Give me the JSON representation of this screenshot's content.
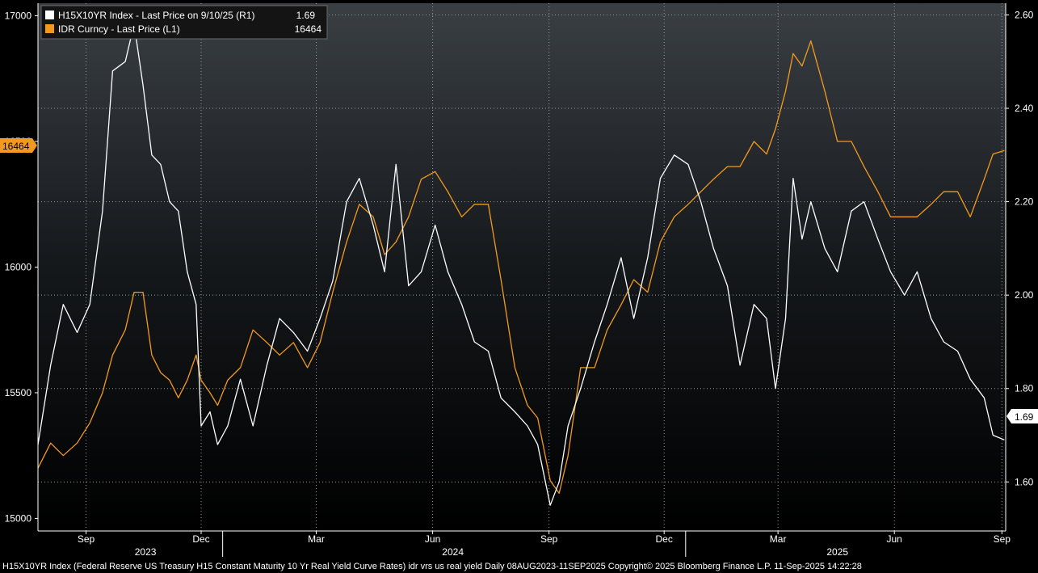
{
  "chart_data": {
    "type": "line",
    "title": "",
    "xlabel": "",
    "ylabel_left": "",
    "ylabel_right": "",
    "left_axis": {
      "ylim": [
        14950,
        17050
      ],
      "ticks": [
        "15000",
        "15500",
        "16000",
        "16500",
        "17000"
      ]
    },
    "right_axis": {
      "ylim": [
        1.495,
        2.625
      ],
      "ticks": [
        "1.60",
        "1.80",
        "2.00",
        "2.20",
        "2.40",
        "2.60"
      ]
    },
    "x_range": [
      "2023-08-08",
      "2025-09-11"
    ],
    "month_ticks": [
      {
        "date": "2023-09-15",
        "label": "Sep"
      },
      {
        "date": "2023-12-15",
        "label": "Dec"
      },
      {
        "date": "2024-03-15",
        "label": "Mar"
      },
      {
        "date": "2024-06-15",
        "label": "Jun"
      },
      {
        "date": "2024-09-15",
        "label": "Sep"
      },
      {
        "date": "2024-12-15",
        "label": "Dec"
      },
      {
        "date": "2025-03-15",
        "label": "Mar"
      },
      {
        "date": "2025-06-15",
        "label": "Jun"
      },
      {
        "date": "2025-09-08",
        "label": "Sep"
      }
    ],
    "year_ticks": [
      {
        "date": "2023-11-01",
        "label": "2023"
      },
      {
        "date": "2024-07-01",
        "label": "2024"
      },
      {
        "date": "2025-05-01",
        "label": "2025"
      }
    ],
    "year_dividers": [
      "2024-01-01",
      "2025-01-01"
    ],
    "grid": true,
    "legend_position": "top-left",
    "series": [
      {
        "name": "H15X10YR Index - Last Price on 9/10/25 (R1)",
        "legend_value": "1.69",
        "axis": "right",
        "color": "#ffffff",
        "last_label": "1.69",
        "points": [
          [
            "2023-08-08",
            1.68
          ],
          [
            "2023-08-18",
            1.85
          ],
          [
            "2023-08-28",
            1.98
          ],
          [
            "2023-09-08",
            1.92
          ],
          [
            "2023-09-18",
            1.98
          ],
          [
            "2023-09-28",
            2.18
          ],
          [
            "2023-10-06",
            2.48
          ],
          [
            "2023-10-16",
            2.5
          ],
          [
            "2023-10-23",
            2.58
          ],
          [
            "2023-10-30",
            2.45
          ],
          [
            "2023-11-06",
            2.3
          ],
          [
            "2023-11-13",
            2.28
          ],
          [
            "2023-11-20",
            2.2
          ],
          [
            "2023-11-27",
            2.18
          ],
          [
            "2023-12-04",
            2.05
          ],
          [
            "2023-12-11",
            1.98
          ],
          [
            "2023-12-15",
            1.72
          ],
          [
            "2023-12-22",
            1.75
          ],
          [
            "2023-12-28",
            1.68
          ],
          [
            "2024-01-05",
            1.72
          ],
          [
            "2024-01-15",
            1.82
          ],
          [
            "2024-01-25",
            1.72
          ],
          [
            "2024-02-05",
            1.85
          ],
          [
            "2024-02-15",
            1.95
          ],
          [
            "2024-02-26",
            1.92
          ],
          [
            "2024-03-08",
            1.88
          ],
          [
            "2024-03-18",
            1.95
          ],
          [
            "2024-03-28",
            2.03
          ],
          [
            "2024-04-08",
            2.2
          ],
          [
            "2024-04-18",
            2.25
          ],
          [
            "2024-04-29",
            2.15
          ],
          [
            "2024-05-08",
            2.05
          ],
          [
            "2024-05-17",
            2.28
          ],
          [
            "2024-05-27",
            2.02
          ],
          [
            "2024-06-06",
            2.05
          ],
          [
            "2024-06-17",
            2.15
          ],
          [
            "2024-06-27",
            2.05
          ],
          [
            "2024-07-08",
            1.98
          ],
          [
            "2024-07-18",
            1.9
          ],
          [
            "2024-07-29",
            1.88
          ],
          [
            "2024-08-08",
            1.78
          ],
          [
            "2024-08-19",
            1.75
          ],
          [
            "2024-08-29",
            1.72
          ],
          [
            "2024-09-06",
            1.68
          ],
          [
            "2024-09-16",
            1.55
          ],
          [
            "2024-09-23",
            1.6
          ],
          [
            "2024-09-30",
            1.72
          ],
          [
            "2024-10-10",
            1.8
          ],
          [
            "2024-10-21",
            1.9
          ],
          [
            "2024-10-31",
            1.98
          ],
          [
            "2024-11-11",
            2.08
          ],
          [
            "2024-11-21",
            1.95
          ],
          [
            "2024-12-02",
            2.08
          ],
          [
            "2024-12-12",
            2.25
          ],
          [
            "2024-12-23",
            2.3
          ],
          [
            "2025-01-03",
            2.28
          ],
          [
            "2025-01-13",
            2.2
          ],
          [
            "2025-01-23",
            2.1
          ],
          [
            "2025-02-03",
            2.02
          ],
          [
            "2025-02-13",
            1.85
          ],
          [
            "2025-02-24",
            1.98
          ],
          [
            "2025-03-06",
            1.95
          ],
          [
            "2025-03-13",
            1.8
          ],
          [
            "2025-03-21",
            1.95
          ],
          [
            "2025-03-27",
            2.25
          ],
          [
            "2025-04-03",
            2.12
          ],
          [
            "2025-04-10",
            2.2
          ],
          [
            "2025-04-21",
            2.1
          ],
          [
            "2025-05-01",
            2.05
          ],
          [
            "2025-05-12",
            2.18
          ],
          [
            "2025-05-22",
            2.2
          ],
          [
            "2025-06-02",
            2.12
          ],
          [
            "2025-06-12",
            2.05
          ],
          [
            "2025-06-23",
            2.0
          ],
          [
            "2025-07-03",
            2.05
          ],
          [
            "2025-07-14",
            1.95
          ],
          [
            "2025-07-24",
            1.9
          ],
          [
            "2025-08-04",
            1.88
          ],
          [
            "2025-08-14",
            1.82
          ],
          [
            "2025-08-25",
            1.78
          ],
          [
            "2025-09-01",
            1.7
          ],
          [
            "2025-09-10",
            1.69
          ]
        ]
      },
      {
        "name": "IDR Curncy - Last Price (L1)",
        "legend_value": "16464",
        "axis": "left",
        "color": "#f39a1e",
        "last_label": "16464",
        "points": [
          [
            "2023-08-08",
            15200
          ],
          [
            "2023-08-18",
            15300
          ],
          [
            "2023-08-28",
            15250
          ],
          [
            "2023-09-08",
            15300
          ],
          [
            "2023-09-18",
            15380
          ],
          [
            "2023-09-28",
            15500
          ],
          [
            "2023-10-06",
            15650
          ],
          [
            "2023-10-16",
            15750
          ],
          [
            "2023-10-23",
            15900
          ],
          [
            "2023-10-30",
            15900
          ],
          [
            "2023-11-06",
            15650
          ],
          [
            "2023-11-13",
            15580
          ],
          [
            "2023-11-20",
            15550
          ],
          [
            "2023-11-27",
            15480
          ],
          [
            "2023-12-04",
            15550
          ],
          [
            "2023-12-11",
            15650
          ],
          [
            "2023-12-15",
            15550
          ],
          [
            "2023-12-22",
            15500
          ],
          [
            "2023-12-28",
            15450
          ],
          [
            "2024-01-05",
            15550
          ],
          [
            "2024-01-15",
            15600
          ],
          [
            "2024-01-25",
            15750
          ],
          [
            "2024-02-05",
            15700
          ],
          [
            "2024-02-15",
            15650
          ],
          [
            "2024-02-26",
            15700
          ],
          [
            "2024-03-08",
            15600
          ],
          [
            "2024-03-18",
            15700
          ],
          [
            "2024-03-28",
            15900
          ],
          [
            "2024-04-08",
            16100
          ],
          [
            "2024-04-18",
            16250
          ],
          [
            "2024-04-29",
            16200
          ],
          [
            "2024-05-08",
            16050
          ],
          [
            "2024-05-17",
            16100
          ],
          [
            "2024-05-27",
            16200
          ],
          [
            "2024-06-06",
            16350
          ],
          [
            "2024-06-17",
            16380
          ],
          [
            "2024-06-27",
            16300
          ],
          [
            "2024-07-08",
            16200
          ],
          [
            "2024-07-18",
            16250
          ],
          [
            "2024-07-29",
            16250
          ],
          [
            "2024-08-08",
            15950
          ],
          [
            "2024-08-19",
            15600
          ],
          [
            "2024-08-29",
            15450
          ],
          [
            "2024-09-06",
            15400
          ],
          [
            "2024-09-16",
            15150
          ],
          [
            "2024-09-23",
            15100
          ],
          [
            "2024-09-30",
            15250
          ],
          [
            "2024-10-10",
            15600
          ],
          [
            "2024-10-21",
            15600
          ],
          [
            "2024-10-31",
            15750
          ],
          [
            "2024-11-11",
            15850
          ],
          [
            "2024-11-21",
            15950
          ],
          [
            "2024-12-02",
            15900
          ],
          [
            "2024-12-12",
            16100
          ],
          [
            "2024-12-23",
            16200
          ],
          [
            "2025-01-03",
            16250
          ],
          [
            "2025-01-13",
            16300
          ],
          [
            "2025-01-23",
            16350
          ],
          [
            "2025-02-03",
            16400
          ],
          [
            "2025-02-13",
            16400
          ],
          [
            "2025-02-24",
            16500
          ],
          [
            "2025-03-06",
            16450
          ],
          [
            "2025-03-13",
            16550
          ],
          [
            "2025-03-21",
            16700
          ],
          [
            "2025-03-27",
            16850
          ],
          [
            "2025-04-03",
            16800
          ],
          [
            "2025-04-10",
            16900
          ],
          [
            "2025-04-21",
            16700
          ],
          [
            "2025-05-01",
            16500
          ],
          [
            "2025-05-12",
            16500
          ],
          [
            "2025-05-22",
            16400
          ],
          [
            "2025-06-02",
            16300
          ],
          [
            "2025-06-12",
            16200
          ],
          [
            "2025-06-23",
            16200
          ],
          [
            "2025-07-03",
            16200
          ],
          [
            "2025-07-14",
            16250
          ],
          [
            "2025-07-24",
            16300
          ],
          [
            "2025-08-04",
            16300
          ],
          [
            "2025-08-14",
            16200
          ],
          [
            "2025-08-25",
            16350
          ],
          [
            "2025-09-01",
            16450
          ],
          [
            "2025-09-10",
            16464
          ]
        ]
      }
    ],
    "footer_line": "H15X10YR Index (Federal Reserve US Treasury H15 Constant Maturity 10 Yr Real Yield Curve Rates) idr vrs us real yield  Daily 08AUG2023-11SEP2025 Copyright© 2025 Bloomberg Finance L.P. 11-Sep-2025 14:22:28"
  }
}
